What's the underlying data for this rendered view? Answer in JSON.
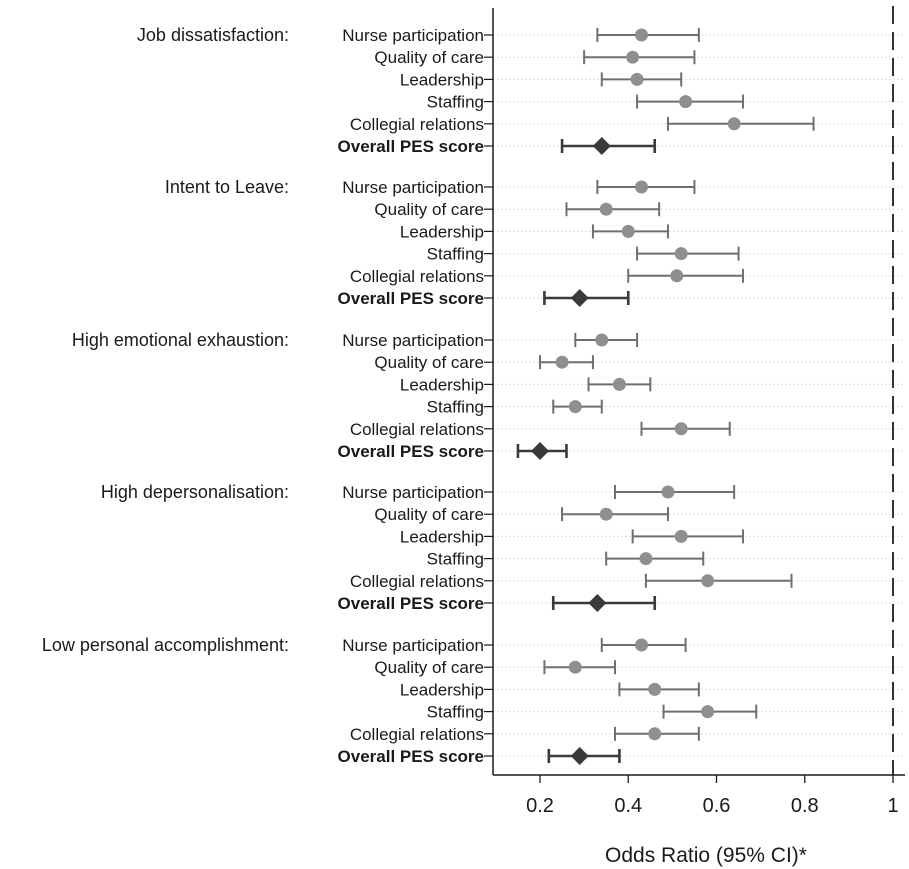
{
  "chart_data": {
    "type": "forest",
    "xlabel": "Odds Ratio (95% CI)*",
    "xlim": [
      0.12,
      1.02
    ],
    "xticks": [
      {
        "value": 0.2,
        "label": "0.2"
      },
      {
        "value": 0.4,
        "label": "0.4"
      },
      {
        "value": 0.6,
        "label": "0.6"
      },
      {
        "value": 0.8,
        "label": "0.8"
      },
      {
        "value": 1.0,
        "label": "1"
      }
    ],
    "reference_line": 1.0,
    "colors": {
      "point": "#8f8f8f",
      "ci": "#6f6f6f",
      "overall": "#3a3a3a",
      "reference": "#333333",
      "gridline": "#d0d0d0"
    },
    "groups": [
      {
        "label": "Job dissatisfaction:",
        "rows": [
          {
            "label": "Nurse participation",
            "or": 0.43,
            "lo": 0.33,
            "hi": 0.56,
            "overall": false
          },
          {
            "label": "Quality of care",
            "or": 0.41,
            "lo": 0.3,
            "hi": 0.55,
            "overall": false
          },
          {
            "label": "Leadership",
            "or": 0.42,
            "lo": 0.34,
            "hi": 0.52,
            "overall": false
          },
          {
            "label": "Staffing",
            "or": 0.53,
            "lo": 0.42,
            "hi": 0.66,
            "overall": false
          },
          {
            "label": "Collegial relations",
            "or": 0.64,
            "lo": 0.49,
            "hi": 0.82,
            "overall": false
          },
          {
            "label": "Overall PES score",
            "or": 0.34,
            "lo": 0.25,
            "hi": 0.46,
            "overall": true
          }
        ]
      },
      {
        "label": "Intent to Leave:",
        "rows": [
          {
            "label": "Nurse participation",
            "or": 0.43,
            "lo": 0.33,
            "hi": 0.55,
            "overall": false
          },
          {
            "label": "Quality of care",
            "or": 0.35,
            "lo": 0.26,
            "hi": 0.47,
            "overall": false
          },
          {
            "label": "Leadership",
            "or": 0.4,
            "lo": 0.32,
            "hi": 0.49,
            "overall": false
          },
          {
            "label": "Staffing",
            "or": 0.52,
            "lo": 0.42,
            "hi": 0.65,
            "overall": false
          },
          {
            "label": "Collegial relations",
            "or": 0.51,
            "lo": 0.4,
            "hi": 0.66,
            "overall": false
          },
          {
            "label": "Overall PES score",
            "or": 0.29,
            "lo": 0.21,
            "hi": 0.4,
            "overall": true
          }
        ]
      },
      {
        "label": "High emotional exhaustion:",
        "rows": [
          {
            "label": "Nurse participation",
            "or": 0.34,
            "lo": 0.28,
            "hi": 0.42,
            "overall": false
          },
          {
            "label": "Quality of care",
            "or": 0.25,
            "lo": 0.2,
            "hi": 0.32,
            "overall": false
          },
          {
            "label": "Leadership",
            "or": 0.38,
            "lo": 0.31,
            "hi": 0.45,
            "overall": false
          },
          {
            "label": "Staffing",
            "or": 0.28,
            "lo": 0.23,
            "hi": 0.34,
            "overall": false
          },
          {
            "label": "Collegial relations",
            "or": 0.52,
            "lo": 0.43,
            "hi": 0.63,
            "overall": false
          },
          {
            "label": "Overall PES score",
            "or": 0.2,
            "lo": 0.15,
            "hi": 0.26,
            "overall": true
          }
        ]
      },
      {
        "label": "High depersonalisation:",
        "rows": [
          {
            "label": "Nurse participation",
            "or": 0.49,
            "lo": 0.37,
            "hi": 0.64,
            "overall": false
          },
          {
            "label": "Quality of care",
            "or": 0.35,
            "lo": 0.25,
            "hi": 0.49,
            "overall": false
          },
          {
            "label": "Leadership",
            "or": 0.52,
            "lo": 0.41,
            "hi": 0.66,
            "overall": false
          },
          {
            "label": "Staffing",
            "or": 0.44,
            "lo": 0.35,
            "hi": 0.57,
            "overall": false
          },
          {
            "label": "Collegial relations",
            "or": 0.58,
            "lo": 0.44,
            "hi": 0.77,
            "overall": false
          },
          {
            "label": "Overall PES score",
            "or": 0.33,
            "lo": 0.23,
            "hi": 0.46,
            "overall": true
          }
        ]
      },
      {
        "label": "Low personal accomplishment:",
        "rows": [
          {
            "label": "Nurse participation",
            "or": 0.43,
            "lo": 0.34,
            "hi": 0.53,
            "overall": false
          },
          {
            "label": "Quality of care",
            "or": 0.28,
            "lo": 0.21,
            "hi": 0.37,
            "overall": false
          },
          {
            "label": "Leadership",
            "or": 0.46,
            "lo": 0.38,
            "hi": 0.56,
            "overall": false
          },
          {
            "label": "Staffing",
            "or": 0.58,
            "lo": 0.48,
            "hi": 0.69,
            "overall": false
          },
          {
            "label": "Collegial relations",
            "or": 0.46,
            "lo": 0.37,
            "hi": 0.56,
            "overall": false
          },
          {
            "label": "Overall PES score",
            "or": 0.29,
            "lo": 0.22,
            "hi": 0.38,
            "overall": true
          }
        ]
      }
    ]
  }
}
